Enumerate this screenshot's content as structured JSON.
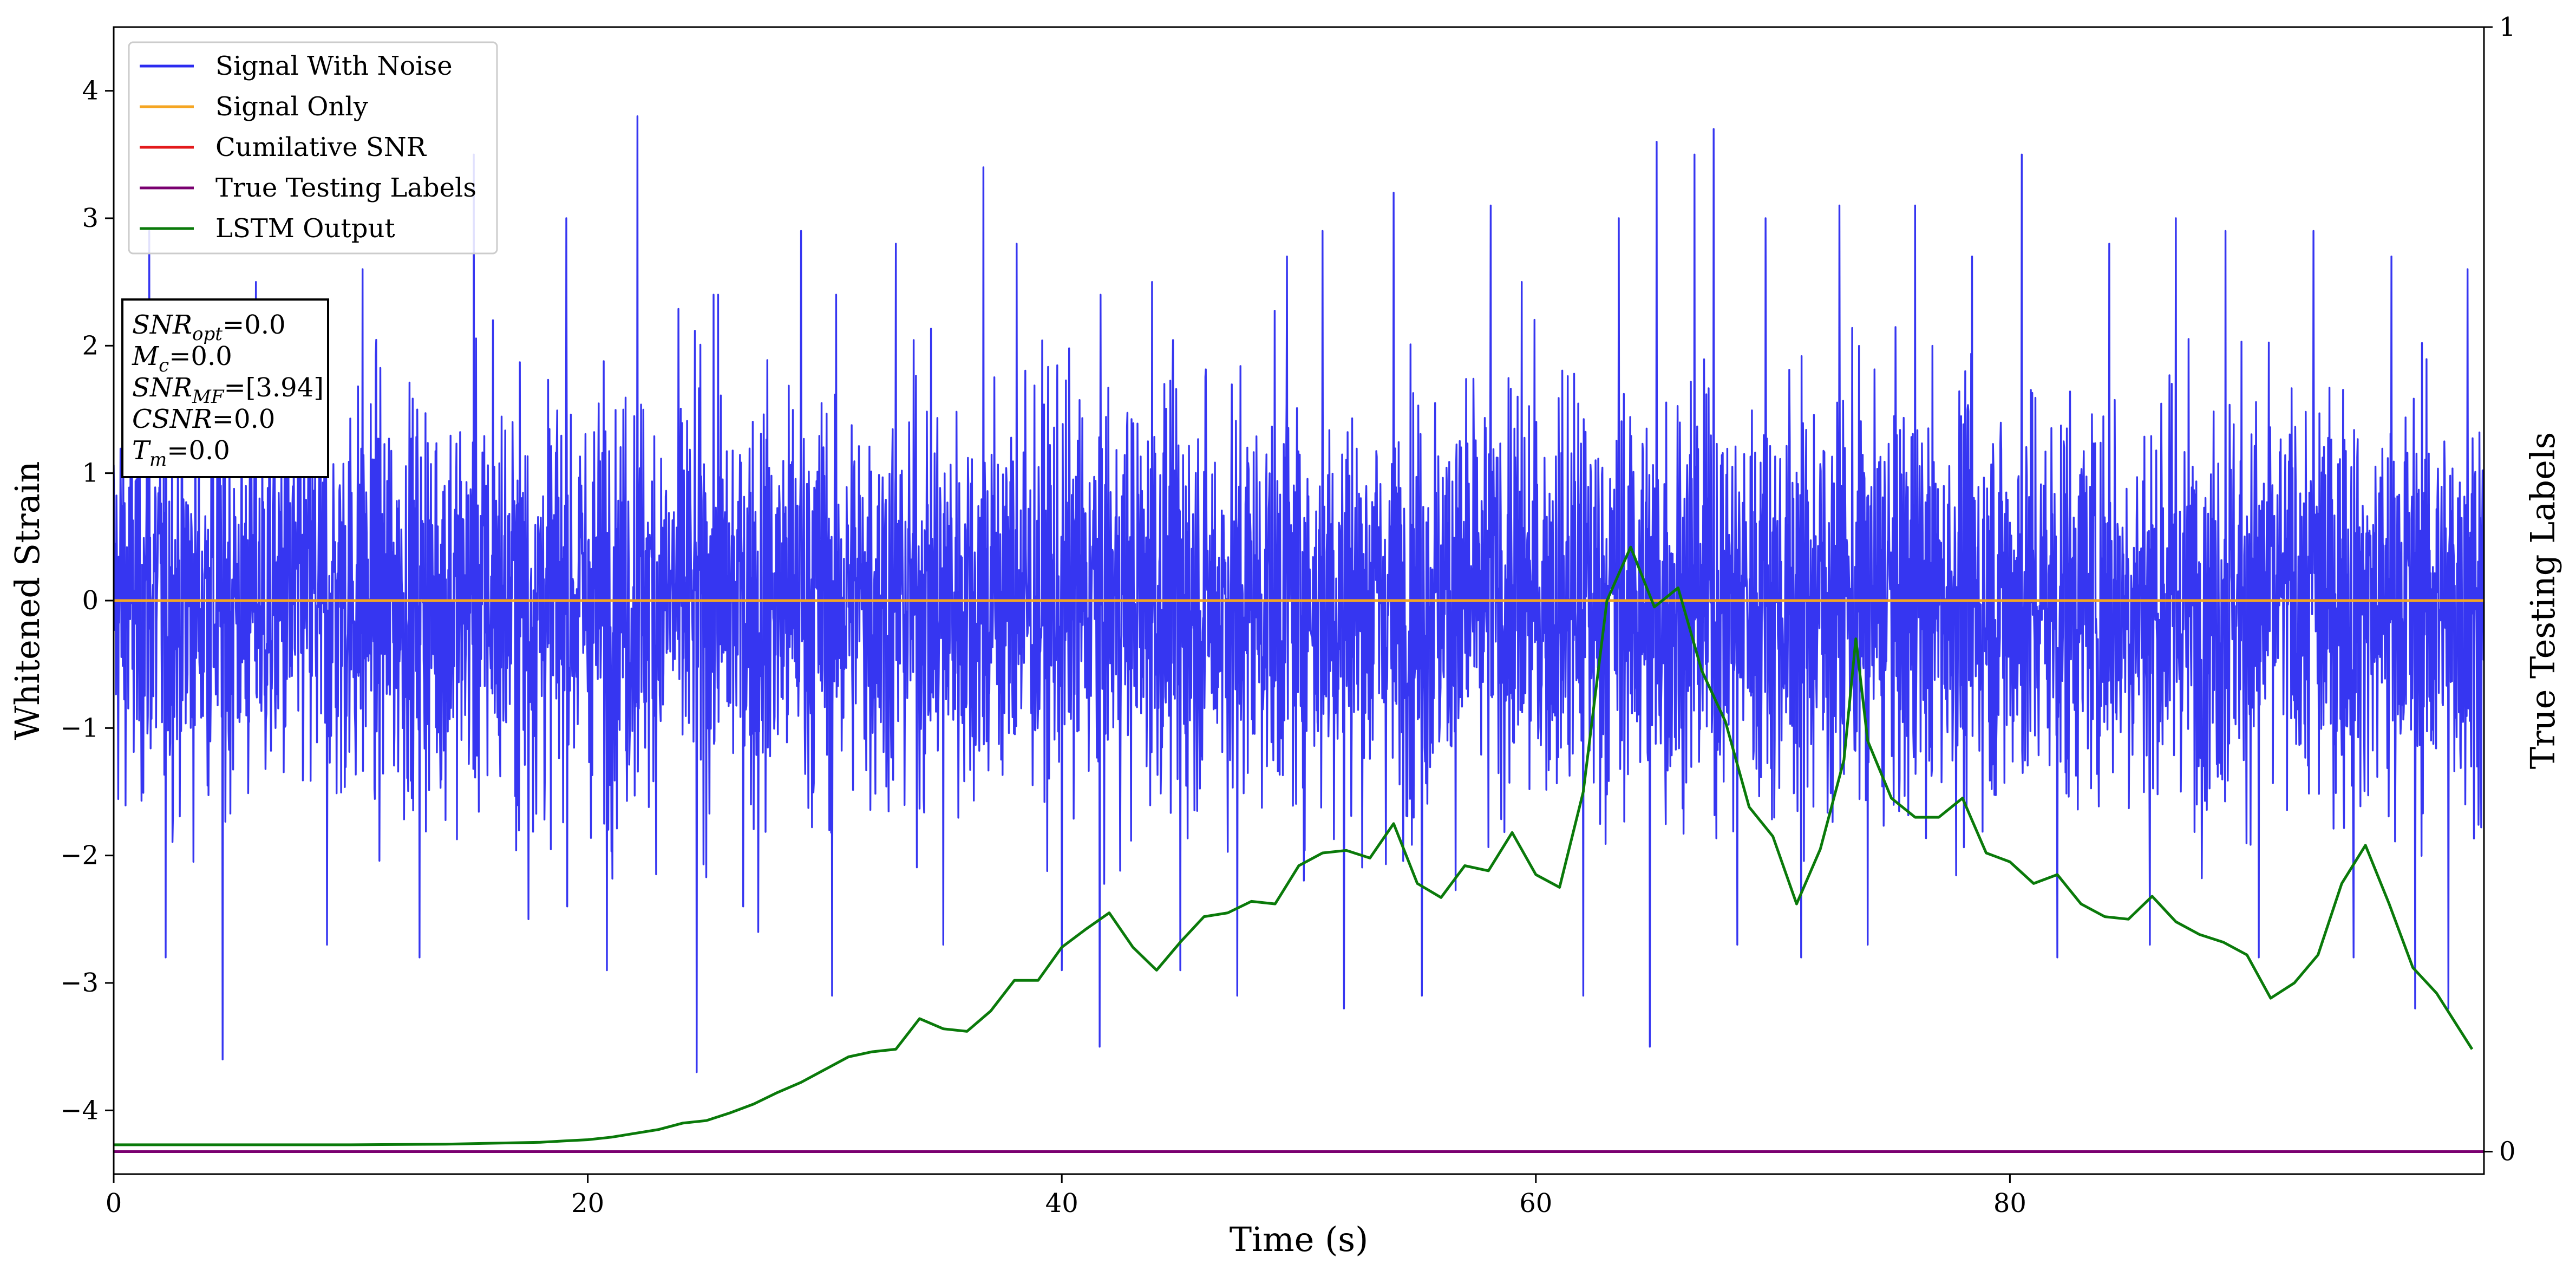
{
  "chart_data": {
    "type": "line",
    "xlabel": "Time (s)",
    "ylabel": "Whitened Strain",
    "ylabel_right": "True Testing Labels",
    "xlim": [
      0,
      100
    ],
    "ylim": [
      -4.5,
      4.5
    ],
    "ylim_right": [
      -0.02,
      1.0
    ],
    "x_ticks": [
      0,
      20,
      40,
      60,
      80
    ],
    "y_ticks": [
      -4,
      -3,
      -2,
      -1,
      0,
      1,
      2,
      3,
      4
    ],
    "y_ticks_right": [
      0,
      1
    ],
    "grid": false,
    "legend_position": "top-left",
    "legend": [
      {
        "name": "Signal With Noise",
        "color": "#2b2bf0"
      },
      {
        "name": "Signal Only",
        "color": "#f5a623"
      },
      {
        "name": "Cumilative SNR",
        "color": "#e31a1c"
      },
      {
        "name": "True Testing Labels",
        "color": "#7a0070"
      },
      {
        "name": "LSTM Output",
        "color": "#0a7a0a"
      }
    ],
    "info_box": [
      {
        "base": "SNR",
        "sub": "opt",
        "value": "=0.0"
      },
      {
        "base": "M",
        "sub": "c",
        "value": "=0.0"
      },
      {
        "base": "SNR",
        "sub": "MF",
        "value": "=[3.94]"
      },
      {
        "base": "CSNR",
        "sub": "",
        "value": "=0.0"
      },
      {
        "base": "T",
        "sub": "m",
        "value": "=0.0"
      }
    ],
    "series": [
      {
        "name": "Signal With Noise",
        "axis": "left",
        "color": "#2b2bf0",
        "x_range": [
          0,
          100
        ],
        "std": 0.8,
        "peaks": [
          [
            1.5,
            2.9
          ],
          [
            2.2,
            -2.8
          ],
          [
            4.6,
            -3.6
          ],
          [
            6.0,
            2.5
          ],
          [
            9.0,
            -2.7
          ],
          [
            10.5,
            2.6
          ],
          [
            12.9,
            -2.8
          ],
          [
            15.2,
            3.5
          ],
          [
            16.0,
            2.2
          ],
          [
            17.5,
            -2.5
          ],
          [
            19.1,
            3.0
          ],
          [
            20.8,
            -2.9
          ],
          [
            22.1,
            3.8
          ],
          [
            24.6,
            -3.7
          ],
          [
            25.5,
            2.4
          ],
          [
            27.2,
            -2.6
          ],
          [
            29.0,
            2.9
          ],
          [
            30.3,
            -3.1
          ],
          [
            33.0,
            2.8
          ],
          [
            35.0,
            -2.7
          ],
          [
            36.7,
            3.4
          ],
          [
            38.1,
            2.8
          ],
          [
            40.0,
            -2.9
          ],
          [
            41.6,
            -3.5
          ],
          [
            43.8,
            2.5
          ],
          [
            45.0,
            -2.9
          ],
          [
            47.4,
            -3.1
          ],
          [
            49.5,
            2.7
          ],
          [
            51.0,
            2.9
          ],
          [
            51.9,
            -3.2
          ],
          [
            54.0,
            3.2
          ],
          [
            55.2,
            -3.1
          ],
          [
            58.1,
            3.1
          ],
          [
            59.4,
            2.5
          ],
          [
            62.0,
            -3.1
          ],
          [
            63.5,
            3.0
          ],
          [
            64.8,
            -3.5
          ],
          [
            65.1,
            3.6
          ],
          [
            66.7,
            3.5
          ],
          [
            67.5,
            3.7
          ],
          [
            68.5,
            -2.7
          ],
          [
            69.7,
            3.0
          ],
          [
            71.2,
            -2.8
          ],
          [
            72.8,
            3.1
          ],
          [
            74.0,
            -2.7
          ],
          [
            76.0,
            3.1
          ],
          [
            78.4,
            2.7
          ],
          [
            80.5,
            3.5
          ],
          [
            82.0,
            -2.8
          ],
          [
            84.2,
            2.8
          ],
          [
            85.9,
            -2.7
          ],
          [
            87.0,
            3.0
          ],
          [
            89.1,
            2.9
          ],
          [
            90.5,
            -2.8
          ],
          [
            92.8,
            2.9
          ],
          [
            94.5,
            -2.8
          ],
          [
            96.1,
            2.7
          ],
          [
            97.1,
            -3.2
          ],
          [
            98.5,
            -3.2
          ],
          [
            99.3,
            2.6
          ]
        ]
      },
      {
        "name": "Signal Only",
        "axis": "left",
        "color": "#f5a623",
        "x": [
          0,
          100
        ],
        "y": [
          0.0,
          0.0
        ]
      },
      {
        "name": "Cumilative SNR",
        "axis": "right",
        "color": "#e31a1c",
        "x": [
          0,
          100
        ],
        "y": [
          0.0,
          0.0
        ]
      },
      {
        "name": "True Testing Labels",
        "axis": "right",
        "color": "#7a0070",
        "x": [
          0,
          100
        ],
        "y": [
          0.0,
          0.0
        ]
      },
      {
        "name": "LSTM Output",
        "axis": "left",
        "color": "#0a7a0a",
        "x": [
          0,
          5,
          10,
          14,
          18,
          19,
          20,
          21,
          22,
          23,
          24,
          25,
          26,
          27,
          28,
          29,
          30,
          31,
          32,
          33,
          34,
          35,
          36,
          37,
          38,
          39,
          40,
          41,
          42,
          43,
          44,
          45,
          46,
          47,
          48,
          49,
          50,
          51,
          52,
          53,
          54,
          55,
          56,
          57,
          58,
          59,
          60,
          61,
          62,
          63,
          64,
          65,
          66,
          67,
          68,
          69,
          70,
          71,
          72,
          73,
          73.5,
          74,
          75,
          76,
          77,
          78,
          79,
          80,
          81,
          82,
          83,
          84,
          85,
          86,
          87,
          88,
          89,
          90,
          91,
          92,
          93,
          94,
          95,
          96,
          97,
          98,
          99.5
        ],
        "y": [
          -4.27,
          -4.27,
          -4.27,
          -4.265,
          -4.25,
          -4.24,
          -4.23,
          -4.21,
          -4.18,
          -4.15,
          -4.1,
          -4.08,
          -4.02,
          -3.95,
          -3.86,
          -3.78,
          -3.68,
          -3.58,
          -3.54,
          -3.52,
          -3.28,
          -3.36,
          -3.38,
          -3.22,
          -2.98,
          -2.98,
          -2.72,
          -2.58,
          -2.45,
          -2.72,
          -2.9,
          -2.68,
          -2.48,
          -2.45,
          -2.36,
          -2.38,
          -2.08,
          -1.98,
          -1.96,
          -2.02,
          -1.75,
          -2.22,
          -2.33,
          -2.08,
          -2.12,
          -1.82,
          -2.15,
          -2.25,
          -1.5,
          0.0,
          0.42,
          -0.05,
          0.1,
          -0.55,
          -0.95,
          -1.62,
          -1.85,
          -2.38,
          -1.95,
          -1.25,
          -0.3,
          -1.1,
          -1.55,
          -1.7,
          -1.7,
          -1.55,
          -1.98,
          -2.05,
          -2.22,
          -2.15,
          -2.38,
          -2.48,
          -2.5,
          -2.32,
          -2.52,
          -2.62,
          -2.68,
          -2.78,
          -3.12,
          -3.0,
          -2.78,
          -2.22,
          -1.92,
          -2.38,
          -2.88,
          -3.08,
          -3.52
        ]
      }
    ]
  }
}
